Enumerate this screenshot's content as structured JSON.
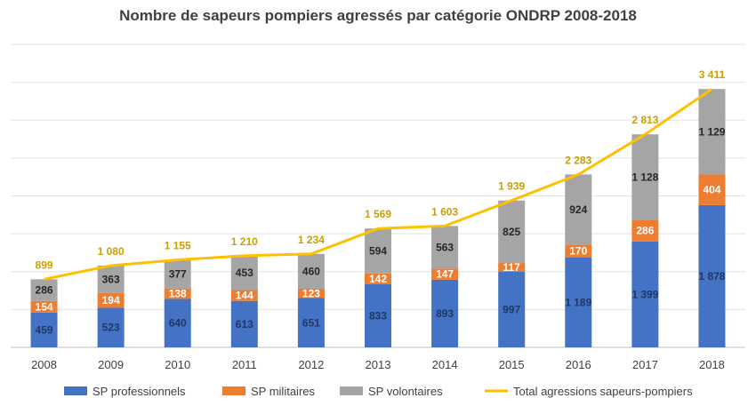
{
  "chart_data": {
    "type": "bar",
    "stacked": true,
    "title": "Nombre de sapeurs pompiers agressés par catégorie ONDRP 2008-2018",
    "categories": [
      "2008",
      "2009",
      "2010",
      "2011",
      "2012",
      "2013",
      "2014",
      "2015",
      "2016",
      "2017",
      "2018"
    ],
    "series": [
      {
        "name": "SP professionnels",
        "type": "bar",
        "color": "#4472C4",
        "values": [
          459,
          523,
          640,
          613,
          651,
          833,
          893,
          997,
          1189,
          1399,
          1878
        ],
        "labels": [
          "459",
          "523",
          "640",
          "613",
          "651",
          "833",
          "893",
          "997",
          "1 189",
          "1 399",
          "1 878"
        ]
      },
      {
        "name": "SP militaires",
        "type": "bar",
        "color": "#ED7D31",
        "values": [
          154,
          194,
          138,
          144,
          123,
          142,
          147,
          117,
          170,
          286,
          404
        ],
        "labels": [
          "154",
          "194",
          "138",
          "144",
          "123",
          "142",
          "147",
          "117",
          "170",
          "286",
          "404"
        ]
      },
      {
        "name": "SP volontaires",
        "type": "bar",
        "color": "#A5A5A5",
        "values": [
          286,
          363,
          377,
          453,
          460,
          594,
          563,
          825,
          924,
          1128,
          1129
        ],
        "labels": [
          "286",
          "363",
          "377",
          "453",
          "460",
          "594",
          "563",
          "825",
          "924",
          "1 128",
          "1 129"
        ]
      },
      {
        "name": "Total agressions sapeurs-pompiers",
        "type": "line",
        "color": "#FFC000",
        "values": [
          899,
          1080,
          1155,
          1210,
          1234,
          1569,
          1603,
          1939,
          2283,
          2813,
          3411
        ],
        "labels": [
          "899",
          "1 080",
          "1 155",
          "1 210",
          "1 234",
          "1 569",
          "1 603",
          "1 939",
          "2 283",
          "2 813",
          "3 411"
        ]
      }
    ],
    "ylim": [
      0,
      4000
    ],
    "grid": true,
    "legend": "bottom"
  }
}
